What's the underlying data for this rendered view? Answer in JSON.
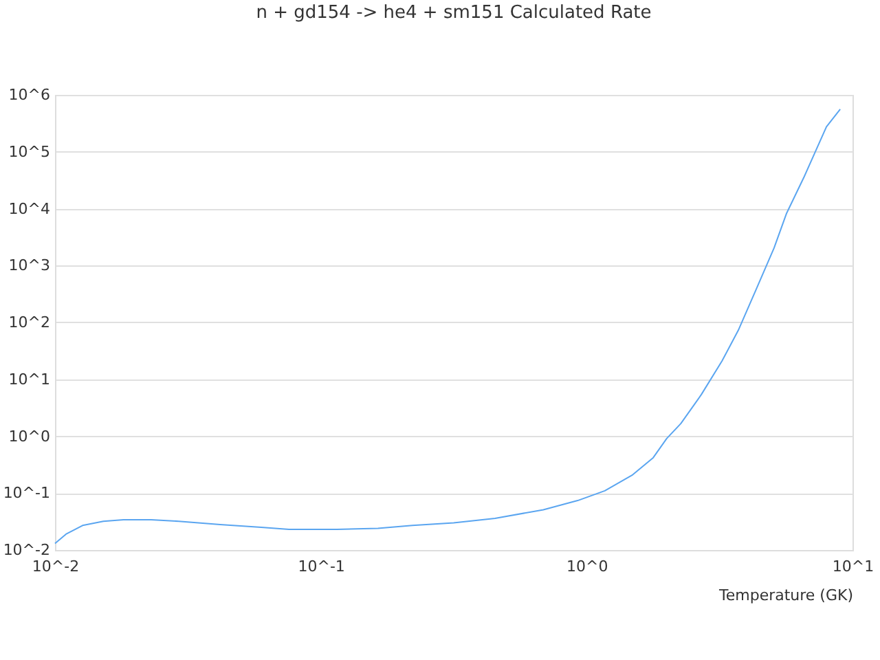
{
  "chart_data": {
    "type": "line",
    "title": "n + gd154 -> he4 + sm151 Calculated Rate",
    "xlabel": "Temperature (GK)",
    "log": "xy",
    "grid": "y",
    "marker": "none",
    "line_style": "solid",
    "xlim": [
      0.01,
      10
    ],
    "ylim": [
      0.01,
      1000000
    ],
    "xticks": [
      {
        "value": 0.01,
        "label": "10^-2"
      },
      {
        "value": 0.1,
        "label": "10^-1"
      },
      {
        "value": 1,
        "label": "10^0"
      },
      {
        "value": 10,
        "label": "10^1"
      }
    ],
    "yticks": [
      {
        "value": 0.01,
        "label": "10^-2"
      },
      {
        "value": 0.1,
        "label": "10^-1"
      },
      {
        "value": 1,
        "label": "10^0"
      },
      {
        "value": 10,
        "label": "10^1"
      },
      {
        "value": 100,
        "label": "10^2"
      },
      {
        "value": 1000,
        "label": "10^3"
      },
      {
        "value": 10000,
        "label": "10^4"
      },
      {
        "value": 100000,
        "label": "10^5"
      },
      {
        "value": 1000000,
        "label": "10^6"
      }
    ],
    "x": [
      0.01,
      0.011,
      0.0127,
      0.0152,
      0.0181,
      0.023,
      0.0292,
      0.0418,
      0.0597,
      0.0759,
      0.115,
      0.164,
      0.221,
      0.316,
      0.452,
      0.687,
      0.925,
      1.17,
      1.49,
      1.78,
      2.0,
      2.26,
      2.7,
      3.23,
      3.72,
      4.35,
      5.07,
      5.65,
      6.59,
      7.98,
      8.99
    ],
    "series": [
      {
        "color": "#5aa5f0",
        "values": [
          0.013,
          0.019,
          0.027,
          0.032,
          0.034,
          0.034,
          0.032,
          0.028,
          0.025,
          0.023,
          0.023,
          0.024,
          0.027,
          0.03,
          0.036,
          0.051,
          0.074,
          0.11,
          0.21,
          0.42,
          0.91,
          1.67,
          5.4,
          21,
          73,
          389,
          2040,
          8300,
          37000,
          275000,
          560000
        ]
      }
    ]
  }
}
